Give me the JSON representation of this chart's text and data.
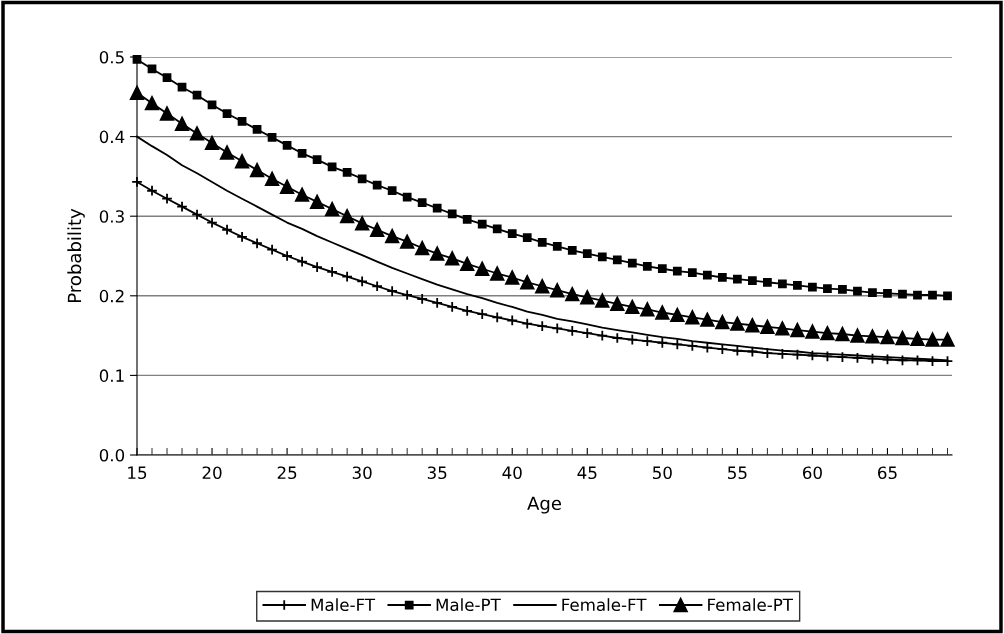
{
  "chart_data": {
    "type": "line",
    "xlabel": "Age",
    "ylabel": "Probability",
    "x": [
      15,
      16,
      17,
      18,
      19,
      20,
      21,
      22,
      23,
      24,
      25,
      26,
      27,
      28,
      29,
      30,
      31,
      32,
      33,
      34,
      35,
      36,
      37,
      38,
      39,
      40,
      41,
      42,
      43,
      44,
      45,
      46,
      47,
      48,
      49,
      50,
      51,
      52,
      53,
      54,
      55,
      56,
      57,
      58,
      59,
      60,
      61,
      62,
      63,
      64,
      65,
      66,
      67,
      68,
      69
    ],
    "xlim": [
      15,
      69.3
    ],
    "xticks": [
      15,
      20,
      25,
      30,
      35,
      40,
      45,
      50,
      55,
      60,
      65
    ],
    "ylim": [
      0,
      0.5
    ],
    "yticks": [
      {
        "value": 0,
        "label": "0.0"
      },
      {
        "value": 0.1,
        "label": "0.1"
      },
      {
        "value": 0.2,
        "label": "0.2"
      },
      {
        "value": 0.3,
        "label": "0.3"
      },
      {
        "value": 0.4,
        "label": "0.4"
      },
      {
        "value": 0.5,
        "label": "0.5"
      }
    ],
    "grid": "y",
    "legend": "bottom",
    "line_style": "solid",
    "series": [
      {
        "name": "Male-FT",
        "color": "#000000",
        "marker": "cross",
        "values": [
          0.343,
          0.332,
          0.322,
          0.312,
          0.302,
          0.292,
          0.283,
          0.274,
          0.266,
          0.258,
          0.25,
          0.243,
          0.236,
          0.23,
          0.224,
          0.218,
          0.212,
          0.206,
          0.201,
          0.196,
          0.191,
          0.186,
          0.181,
          0.177,
          0.173,
          0.169,
          0.165,
          0.162,
          0.159,
          0.156,
          0.153,
          0.15,
          0.147,
          0.145,
          0.143,
          0.141,
          0.139,
          0.137,
          0.135,
          0.133,
          0.131,
          0.13,
          0.128,
          0.127,
          0.126,
          0.125,
          0.124,
          0.123,
          0.122,
          0.121,
          0.12,
          0.119,
          0.119,
          0.118,
          0.118
        ]
      },
      {
        "name": "Male-PT",
        "color": "#000000",
        "marker": "square",
        "values": [
          0.497,
          0.485,
          0.474,
          0.462,
          0.452,
          0.44,
          0.429,
          0.419,
          0.409,
          0.399,
          0.389,
          0.379,
          0.371,
          0.362,
          0.355,
          0.347,
          0.339,
          0.332,
          0.324,
          0.317,
          0.31,
          0.303,
          0.296,
          0.29,
          0.284,
          0.278,
          0.273,
          0.267,
          0.262,
          0.257,
          0.253,
          0.249,
          0.245,
          0.241,
          0.237,
          0.234,
          0.231,
          0.229,
          0.226,
          0.223,
          0.221,
          0.219,
          0.217,
          0.215,
          0.213,
          0.211,
          0.209,
          0.208,
          0.206,
          0.204,
          0.203,
          0.202,
          0.201,
          0.201,
          0.2
        ]
      },
      {
        "name": "Female-FT",
        "color": "#000000",
        "marker": "none",
        "values": [
          0.4,
          0.388,
          0.377,
          0.364,
          0.354,
          0.343,
          0.332,
          0.322,
          0.312,
          0.302,
          0.292,
          0.284,
          0.275,
          0.267,
          0.259,
          0.251,
          0.243,
          0.235,
          0.228,
          0.221,
          0.214,
          0.208,
          0.202,
          0.197,
          0.191,
          0.186,
          0.18,
          0.176,
          0.171,
          0.168,
          0.164,
          0.16,
          0.157,
          0.154,
          0.151,
          0.148,
          0.146,
          0.143,
          0.141,
          0.139,
          0.137,
          0.135,
          0.133,
          0.131,
          0.13,
          0.128,
          0.127,
          0.126,
          0.125,
          0.124,
          0.123,
          0.122,
          0.121,
          0.12,
          0.119
        ]
      },
      {
        "name": "Female-PT",
        "color": "#000000",
        "marker": "triangle",
        "values": [
          0.455,
          0.442,
          0.429,
          0.416,
          0.404,
          0.392,
          0.38,
          0.369,
          0.358,
          0.347,
          0.337,
          0.327,
          0.318,
          0.309,
          0.3,
          0.291,
          0.283,
          0.275,
          0.268,
          0.26,
          0.253,
          0.247,
          0.24,
          0.234,
          0.228,
          0.223,
          0.217,
          0.212,
          0.207,
          0.202,
          0.198,
          0.194,
          0.19,
          0.186,
          0.183,
          0.179,
          0.176,
          0.173,
          0.17,
          0.167,
          0.165,
          0.163,
          0.161,
          0.159,
          0.157,
          0.155,
          0.153,
          0.152,
          0.15,
          0.149,
          0.148,
          0.147,
          0.146,
          0.145,
          0.145
        ]
      }
    ]
  }
}
